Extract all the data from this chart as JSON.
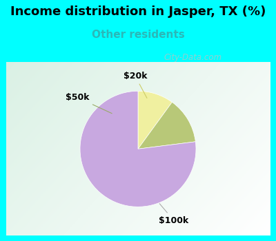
{
  "title": "Income distribution in Jasper, TX (%)",
  "subtitle": "Other residents",
  "title_color": "#000000",
  "subtitle_color": "#2ab8b8",
  "bg_cyan": "#00ffff",
  "slices": [
    {
      "label": "$20k",
      "value": 10,
      "color": "#f0f0a0"
    },
    {
      "label": "$50k",
      "value": 13,
      "color": "#b8c878"
    },
    {
      "label": "$100k",
      "value": 77,
      "color": "#c8a8e0"
    }
  ],
  "startangle": 90,
  "title_fontsize": 13,
  "subtitle_fontsize": 11,
  "watermark_text": "City-Data.com",
  "watermark_color": "#c0c0c0",
  "border_thickness": 0.022,
  "annotation_fontsize": 9
}
